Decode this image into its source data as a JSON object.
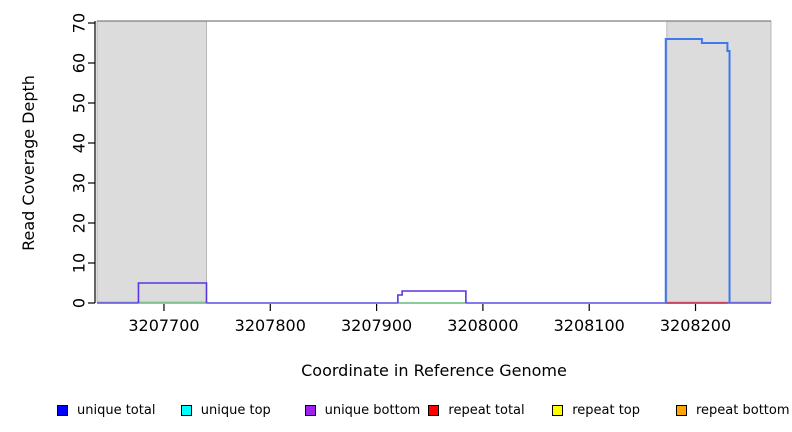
{
  "chart_data": {
    "type": "line",
    "title": "",
    "xlabel": "Coordinate in Reference Genome",
    "ylabel": "Read Coverage Depth",
    "xlim": [
      3207637,
      3208271
    ],
    "ylim": [
      0,
      70.5
    ],
    "xticks": [
      3207700,
      3207800,
      3207900,
      3208000,
      3208100,
      3208200
    ],
    "yticks": [
      0,
      10,
      20,
      30,
      40,
      50,
      60,
      70
    ],
    "grid": false,
    "legend_position": "bottom",
    "colors": {
      "shaded_fill": "#dcdcdc",
      "shaded_border": "#aaaaaa",
      "frame_top": "#808080",
      "axis": "#000000",
      "baseline": "#5c4fe6",
      "green_overlap": "#7cd87c",
      "repeat_total": "#e0333f",
      "unique_bottom_line": "#5936df",
      "unique_total_line": "#3d78ec"
    },
    "shaded_regions": [
      {
        "x0": 3207637,
        "x1": 3207740
      },
      {
        "x0": 3208173,
        "x1": 3208271
      }
    ],
    "baseline": {
      "value": 0,
      "x0": 3207637,
      "x1": 3208271
    },
    "zero_overlays": [
      {
        "name": "unique top / repeat top overlap",
        "color_key": "green_overlap",
        "ranges": [
          [
            3207676,
            3207740
          ],
          [
            3207920,
            3207984
          ]
        ]
      },
      {
        "name": "repeat total",
        "color_key": "repeat_total",
        "ranges": [
          [
            3208172,
            3208230
          ]
        ]
      }
    ],
    "series": [
      {
        "name": "unique bottom",
        "color_key": "unique_bottom_line",
        "stroke_width": 1.6,
        "paths": [
          [
            [
              3207676,
              0
            ],
            [
              3207676,
              5
            ],
            [
              3207740,
              5
            ],
            [
              3207740,
              0
            ]
          ],
          [
            [
              3207920,
              0
            ],
            [
              3207920,
              2
            ],
            [
              3207924,
              2
            ],
            [
              3207924,
              3
            ],
            [
              3207984,
              3
            ],
            [
              3207984,
              0
            ]
          ]
        ]
      },
      {
        "name": "unique total",
        "color_key": "unique_total_line",
        "stroke_width": 2,
        "paths": [
          [
            [
              3208172,
              0
            ],
            [
              3208172,
              66
            ],
            [
              3208206,
              66
            ],
            [
              3208206,
              65
            ],
            [
              3208230,
              65
            ],
            [
              3208230,
              63
            ],
            [
              3208232,
              63
            ],
            [
              3208232,
              0
            ]
          ]
        ]
      }
    ]
  },
  "legend": {
    "items": [
      {
        "label": "unique total",
        "color": "#0000ff"
      },
      {
        "label": "unique top",
        "color": "#00ffff"
      },
      {
        "label": "unique bottom",
        "color": "#a020f0"
      },
      {
        "label": "repeat total",
        "color": "#ff0000"
      },
      {
        "label": "repeat top",
        "color": "#ffff00"
      },
      {
        "label": "repeat bottom",
        "color": "#ffa500"
      }
    ]
  }
}
